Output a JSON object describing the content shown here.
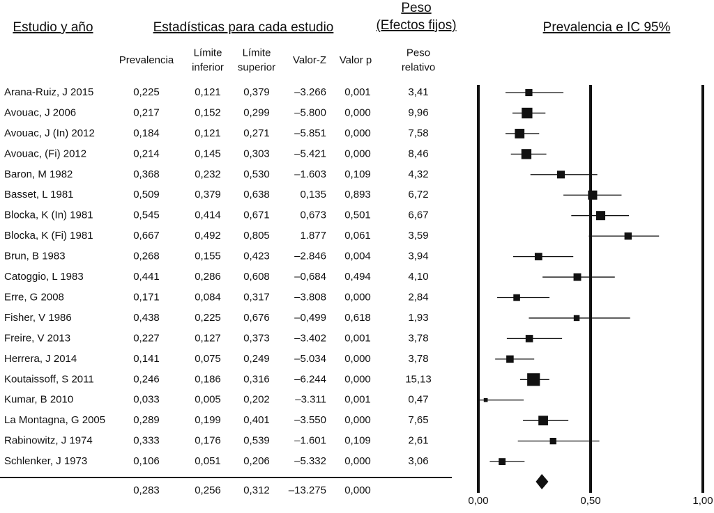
{
  "chart_data": {
    "type": "forest",
    "column_titles": {
      "study": "Estudio y año",
      "stats": "Estadísticas para cada estudio",
      "weight": [
        "Peso",
        "(Efectos fijos)"
      ],
      "plot": "Prevalencia e IC 95%"
    },
    "headers": {
      "prevalence": [
        "Prevalencia"
      ],
      "lower": [
        "Límite",
        "inferior"
      ],
      "upper": [
        "Límite",
        "superior"
      ],
      "z": [
        "Valor-Z"
      ],
      "p": [
        "Valor p"
      ],
      "weight": [
        "Peso",
        "relativo"
      ]
    },
    "studies": [
      "Arana-Ruiz, J 2015",
      "Avouac, J 2006",
      "Avouac, J (In) 2012",
      "Avouac, (Fi) 2012",
      "Baron, M 1982",
      "Basset, L 1981",
      "Blocka, K (In) 1981",
      "Blocka, K (Fi) 1981",
      "Brun, B 1983",
      "Catoggio, L 1983",
      "Erre, G 2008",
      "Fisher, V 1986",
      "Freire, V 2013",
      "Herrera, J 2014",
      "Koutaissoff, S 2011",
      "Kumar, B 2010",
      "La Montagna, G 2005",
      "Rabinowitz, J 1974",
      "Schlenker, J 1973"
    ],
    "prevalence": {
      "values": [
        0.225,
        0.217,
        0.184,
        0.214,
        0.368,
        0.509,
        0.545,
        0.667,
        0.268,
        0.441,
        0.171,
        0.438,
        0.227,
        0.141,
        0.246,
        0.033,
        0.289,
        0.333,
        0.106
      ],
      "value_labels": [
        "0,225",
        "0,217",
        "0,184",
        "0,214",
        "0,368",
        "0,509",
        "0,545",
        "0,667",
        "0,268",
        "0,441",
        "0,171",
        "0,438",
        "0,227",
        "0,141",
        "0,246",
        "0,033",
        "0,289",
        "0,333",
        "0,106"
      ]
    },
    "lower": {
      "values": [
        0.121,
        0.152,
        0.121,
        0.145,
        0.232,
        0.379,
        0.414,
        0.492,
        0.155,
        0.286,
        0.084,
        0.225,
        0.127,
        0.075,
        0.186,
        0.005,
        0.199,
        0.176,
        0.051
      ],
      "value_labels": [
        "0,121",
        "0,152",
        "0,121",
        "0,145",
        "0,232",
        "0,379",
        "0,414",
        "0,492",
        "0,155",
        "0,286",
        "0,084",
        "0,225",
        "0,127",
        "0,075",
        "0,186",
        "0,005",
        "0,199",
        "0,176",
        "0,051"
      ]
    },
    "upper": {
      "values": [
        0.379,
        0.299,
        0.271,
        0.303,
        0.53,
        0.638,
        0.671,
        0.805,
        0.423,
        0.608,
        0.317,
        0.676,
        0.373,
        0.249,
        0.316,
        0.202,
        0.401,
        0.539,
        0.206
      ],
      "value_labels": [
        "0,379",
        "0,299",
        "0,271",
        "0,303",
        "0,530",
        "0,638",
        "0,671",
        "0,805",
        "0,423",
        "0,608",
        "0,317",
        "0,676",
        "0,373",
        "0,249",
        "0,316",
        "0,202",
        "0,401",
        "0,539",
        "0,206"
      ]
    },
    "z": {
      "value_labels": [
        "–3.266",
        "–5.800",
        "–5.851",
        "–5.421",
        "–1.603",
        "0,135",
        "0,673",
        "1.877",
        "–2.846",
        "–0,684",
        "–3.808",
        "–0,499",
        "–3.402",
        "–5.034",
        "–6.244",
        "–3.311",
        "–3.550",
        "–1.601",
        "–5.332"
      ]
    },
    "p": {
      "value_labels": [
        "0,001",
        "0,000",
        "0,000",
        "0,000",
        "0,109",
        "0,893",
        "0,501",
        "0,061",
        "0,004",
        "0,494",
        "0,000",
        "0,618",
        "0,001",
        "0,000",
        "0,000",
        "0,001",
        "0,000",
        "0,109",
        "0,000"
      ]
    },
    "weight": {
      "values": [
        3.41,
        9.96,
        7.58,
        8.46,
        4.32,
        6.72,
        6.67,
        3.59,
        3.94,
        4.1,
        2.84,
        1.93,
        3.78,
        3.78,
        15.13,
        0.47,
        7.65,
        2.61,
        3.06
      ],
      "value_labels": [
        "3,41",
        "9,96",
        "7,58",
        "8,46",
        "4,32",
        "6,72",
        "6,67",
        "3,59",
        "3,94",
        "4,10",
        "2,84",
        "1,93",
        "3,78",
        "3,78",
        "15,13",
        "0,47",
        "7,65",
        "2,61",
        "3,06"
      ]
    },
    "summary": {
      "prevalence": {
        "value": 0.283,
        "label": "0,283"
      },
      "lower": {
        "value": 0.256,
        "label": "0,256"
      },
      "upper": {
        "value": 0.312,
        "label": "0,312"
      },
      "z": "–13.275",
      "p": "0,000"
    },
    "xlim": [
      0,
      1
    ],
    "xticks": [
      {
        "value": 0,
        "label": "0,00"
      },
      {
        "value": 0.5,
        "label": "0,50"
      },
      {
        "value": 1,
        "label": "1,00"
      }
    ],
    "color": "#111111"
  }
}
